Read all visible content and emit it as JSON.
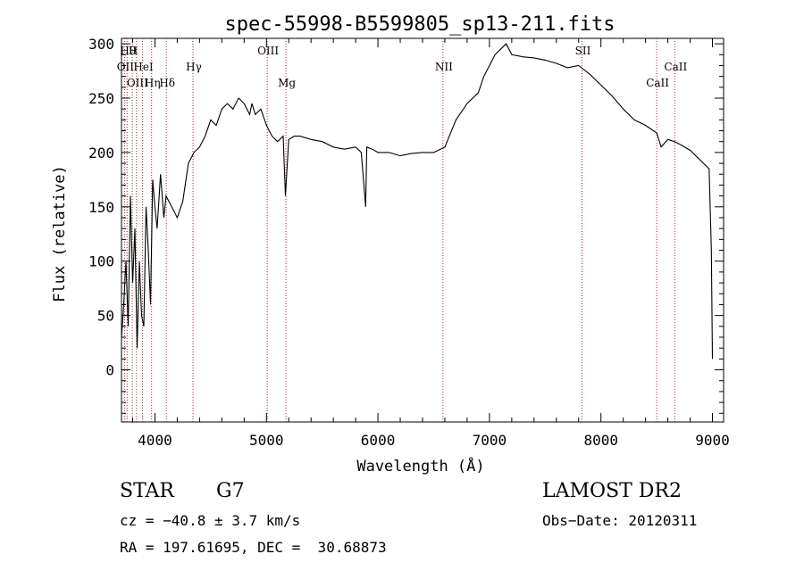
{
  "chart_data": {
    "type": "line",
    "title": "spec-55998-B5599805_sp13-211.fits",
    "xlabel": "Wavelength (Å)",
    "ylabel": "Flux (relative)",
    "xlim": [
      3700,
      9100
    ],
    "ylim": [
      -48,
      305
    ],
    "x_ticks": [
      4000,
      5000,
      6000,
      7000,
      8000,
      9000
    ],
    "y_ticks": [
      0,
      50,
      100,
      150,
      200,
      250,
      300
    ],
    "grid": false,
    "series": [
      {
        "color": "#000000",
        "x": [
          3700,
          3720,
          3740,
          3760,
          3780,
          3800,
          3820,
          3840,
          3860,
          3880,
          3900,
          3920,
          3940,
          3960,
          3980,
          4000,
          4020,
          4050,
          4080,
          4100,
          4150,
          4200,
          4250,
          4300,
          4350,
          4400,
          4450,
          4500,
          4550,
          4600,
          4650,
          4700,
          4750,
          4800,
          4850,
          4870,
          4900,
          4950,
          5000,
          5050,
          5100,
          5150,
          5170,
          5200,
          5250,
          5300,
          5400,
          5500,
          5600,
          5700,
          5800,
          5850,
          5890,
          5900,
          5950,
          6000,
          6100,
          6200,
          6300,
          6400,
          6500,
          6560,
          6600,
          6700,
          6800,
          6900,
          6950,
          7000,
          7050,
          7100,
          7150,
          7200,
          7300,
          7400,
          7500,
          7600,
          7700,
          7800,
          7900,
          8000,
          8100,
          8200,
          8300,
          8400,
          8500,
          8540,
          8600,
          8660,
          8700,
          8800,
          8900,
          8970,
          8990,
          9000
        ],
        "y": [
          30,
          60,
          100,
          40,
          160,
          80,
          130,
          20,
          100,
          50,
          40,
          150,
          110,
          60,
          175,
          150,
          130,
          180,
          140,
          160,
          150,
          140,
          155,
          190,
          200,
          205,
          215,
          230,
          225,
          240,
          245,
          240,
          250,
          245,
          235,
          245,
          235,
          240,
          225,
          215,
          210,
          215,
          160,
          212,
          215,
          215,
          212,
          210,
          205,
          203,
          205,
          200,
          150,
          205,
          203,
          200,
          200,
          197,
          199,
          200,
          200,
          203,
          205,
          230,
          245,
          255,
          270,
          280,
          290,
          295,
          300,
          290,
          288,
          287,
          285,
          282,
          278,
          280,
          272,
          262,
          252,
          240,
          230,
          225,
          218,
          205,
          212,
          210,
          208,
          202,
          192,
          185,
          110,
          10
        ]
      }
    ],
    "lines": [
      {
        "x": 3750,
        "label": "Hθ",
        "row": 0
      },
      {
        "x": 3797,
        "label": "H",
        "row": 0
      },
      {
        "x": 3727,
        "label": "OII",
        "row": 1
      },
      {
        "x": 3889,
        "label": "HeI",
        "row": 1
      },
      {
        "x": 3835,
        "label": "OIII",
        "row": 2
      },
      {
        "x": 3970,
        "label": "Hη",
        "row": 2
      },
      {
        "x": 4102,
        "label": "Hδ",
        "row": 2
      },
      {
        "x": 4341,
        "label": "Hγ",
        "row": 1
      },
      {
        "x": 5007,
        "label": "OIII",
        "row": 0
      },
      {
        "x": 5175,
        "label": "Mg",
        "row": 2
      },
      {
        "x": 6583,
        "label": "NII",
        "row": 1
      },
      {
        "x": 7830,
        "label": "SII",
        "row": 0
      },
      {
        "x": 8500,
        "label": "CaII",
        "row": 2
      },
      {
        "x": 8662,
        "label": "CaII",
        "row": 1
      }
    ]
  },
  "info": {
    "object_class": "STAR",
    "subclass": "G7",
    "survey": "LAMOST DR2",
    "cz": "cz = −40.8 ± 3.7 km/s",
    "obs_date": "Obs−Date: 20120311",
    "radec": "RA = 197.61695, DEC =  30.68873"
  }
}
